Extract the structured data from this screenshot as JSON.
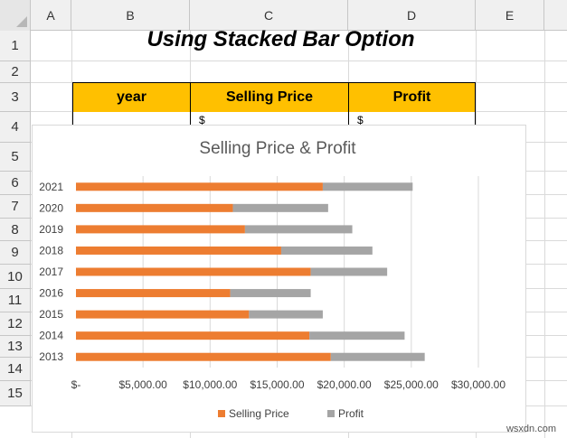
{
  "columns": [
    "A",
    "B",
    "C",
    "D",
    "E"
  ],
  "rows": [
    "1",
    "2",
    "3",
    "4",
    "5",
    "6",
    "7",
    "8",
    "9",
    "10",
    "11",
    "12",
    "13",
    "14",
    "15"
  ],
  "sheet_title": "Using Stacked Bar Option",
  "table": {
    "headers": [
      "year",
      "Selling Price",
      "Profit"
    ],
    "first_row_fragments": [
      "$",
      "$"
    ]
  },
  "watermark": "wsxdn.com",
  "colors": {
    "header_fill": "#ffc000",
    "selling_price": "#ed7d31",
    "profit": "#a5a5a5"
  },
  "chart_data": {
    "type": "bar",
    "orientation": "horizontal",
    "stacked": true,
    "title": "Selling Price & Profit",
    "categories": [
      "2021",
      "2020",
      "2019",
      "2018",
      "2017",
      "2016",
      "2015",
      "2014",
      "2013"
    ],
    "series": [
      {
        "name": "Selling Price",
        "color": "#ed7d31",
        "values": [
          18400,
          11700,
          12600,
          15300,
          17500,
          11500,
          12900,
          17400,
          19000
        ]
      },
      {
        "name": "Profit",
        "color": "#a5a5a5",
        "values": [
          6700,
          7100,
          8000,
          6800,
          5700,
          6000,
          5500,
          7100,
          7000
        ]
      }
    ],
    "xlim": [
      0,
      30000
    ],
    "xticks": [
      0,
      5000,
      10000,
      15000,
      20000,
      25000,
      30000
    ],
    "xtick_labels": [
      "$-",
      "$5,000.00",
      "$10,000.00",
      "$15,000.00",
      "$20,000.00",
      "$25,000.00",
      "$30,000.00"
    ],
    "grid": "vertical",
    "legend": "bottom"
  }
}
